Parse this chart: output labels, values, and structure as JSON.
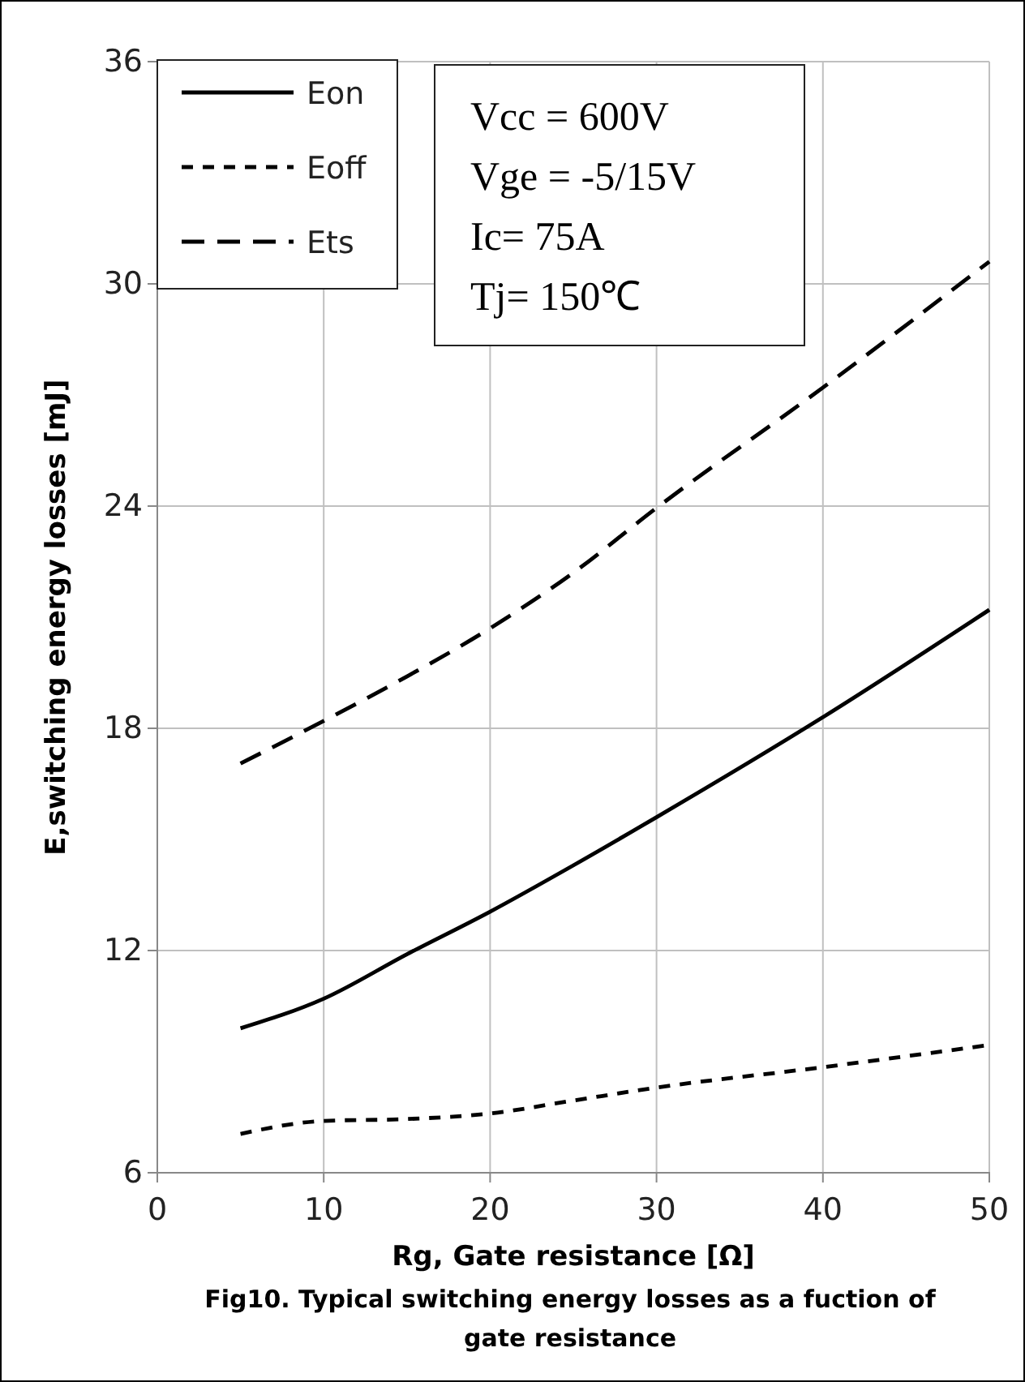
{
  "chart_data": {
    "type": "line",
    "title": "Fig10. Typical switching energy losses as a fuction of gate resistance",
    "xlabel": "Rg, Gate resistance [Ω]",
    "ylabel": "E,switching energy losses [mJ]",
    "annotations": [
      "Vcc = 600V",
      "Vge = -5/15V",
      "Ic= 75A",
      "Tj= 150℃"
    ],
    "x": [
      5,
      10,
      15,
      20,
      25,
      30,
      40,
      50
    ],
    "series": [
      {
        "name": "Eon",
        "color": "#000000",
        "line_style": "solid",
        "values": [
          9.9,
          10.7,
          11.9,
          13.05,
          14.3,
          15.6,
          18.3,
          21.2
        ]
      },
      {
        "name": "Eoff",
        "color": "#000000",
        "line_style": "dotted",
        "values": [
          7.05,
          7.4,
          7.45,
          7.6,
          7.95,
          8.3,
          8.85,
          9.45
        ]
      },
      {
        "name": "Ets",
        "color": "#000000",
        "line_style": "dashed",
        "values": [
          17.05,
          18.2,
          19.4,
          20.7,
          22.2,
          23.95,
          27.2,
          30.6
        ]
      }
    ],
    "xlim": [
      0,
      50
    ],
    "xticks": [
      0,
      10,
      20,
      30,
      40,
      50
    ],
    "ylim": [
      6,
      36
    ],
    "yticks": [
      6,
      12,
      18,
      24,
      30,
      36
    ],
    "grid": true,
    "legend": "top left",
    "marker": "none"
  }
}
